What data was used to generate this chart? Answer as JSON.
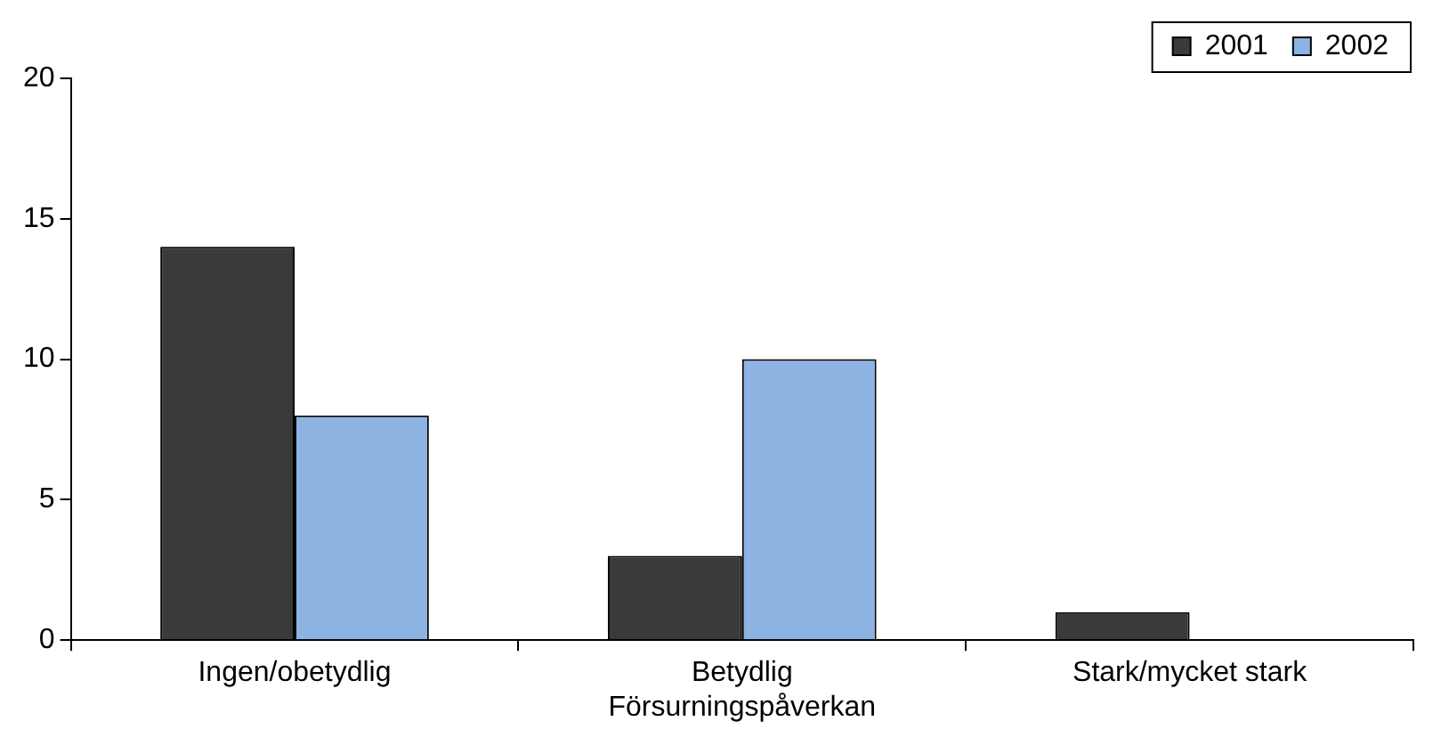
{
  "chart_data": {
    "type": "bar",
    "categories": [
      "Ingen/obetydlig",
      "Betydlig Försurningspåverkan",
      "Stark/mycket stark"
    ],
    "series": [
      {
        "name": "2001",
        "color": "#3a3a3a",
        "values": [
          14,
          3,
          1
        ]
      },
      {
        "name": "2002",
        "color": "#8db3e2",
        "values": [
          8,
          10,
          0
        ]
      }
    ],
    "ylim": [
      0,
      20
    ],
    "yticks": [
      0,
      5,
      10,
      15,
      20
    ],
    "grid": false,
    "legend": "top right"
  }
}
